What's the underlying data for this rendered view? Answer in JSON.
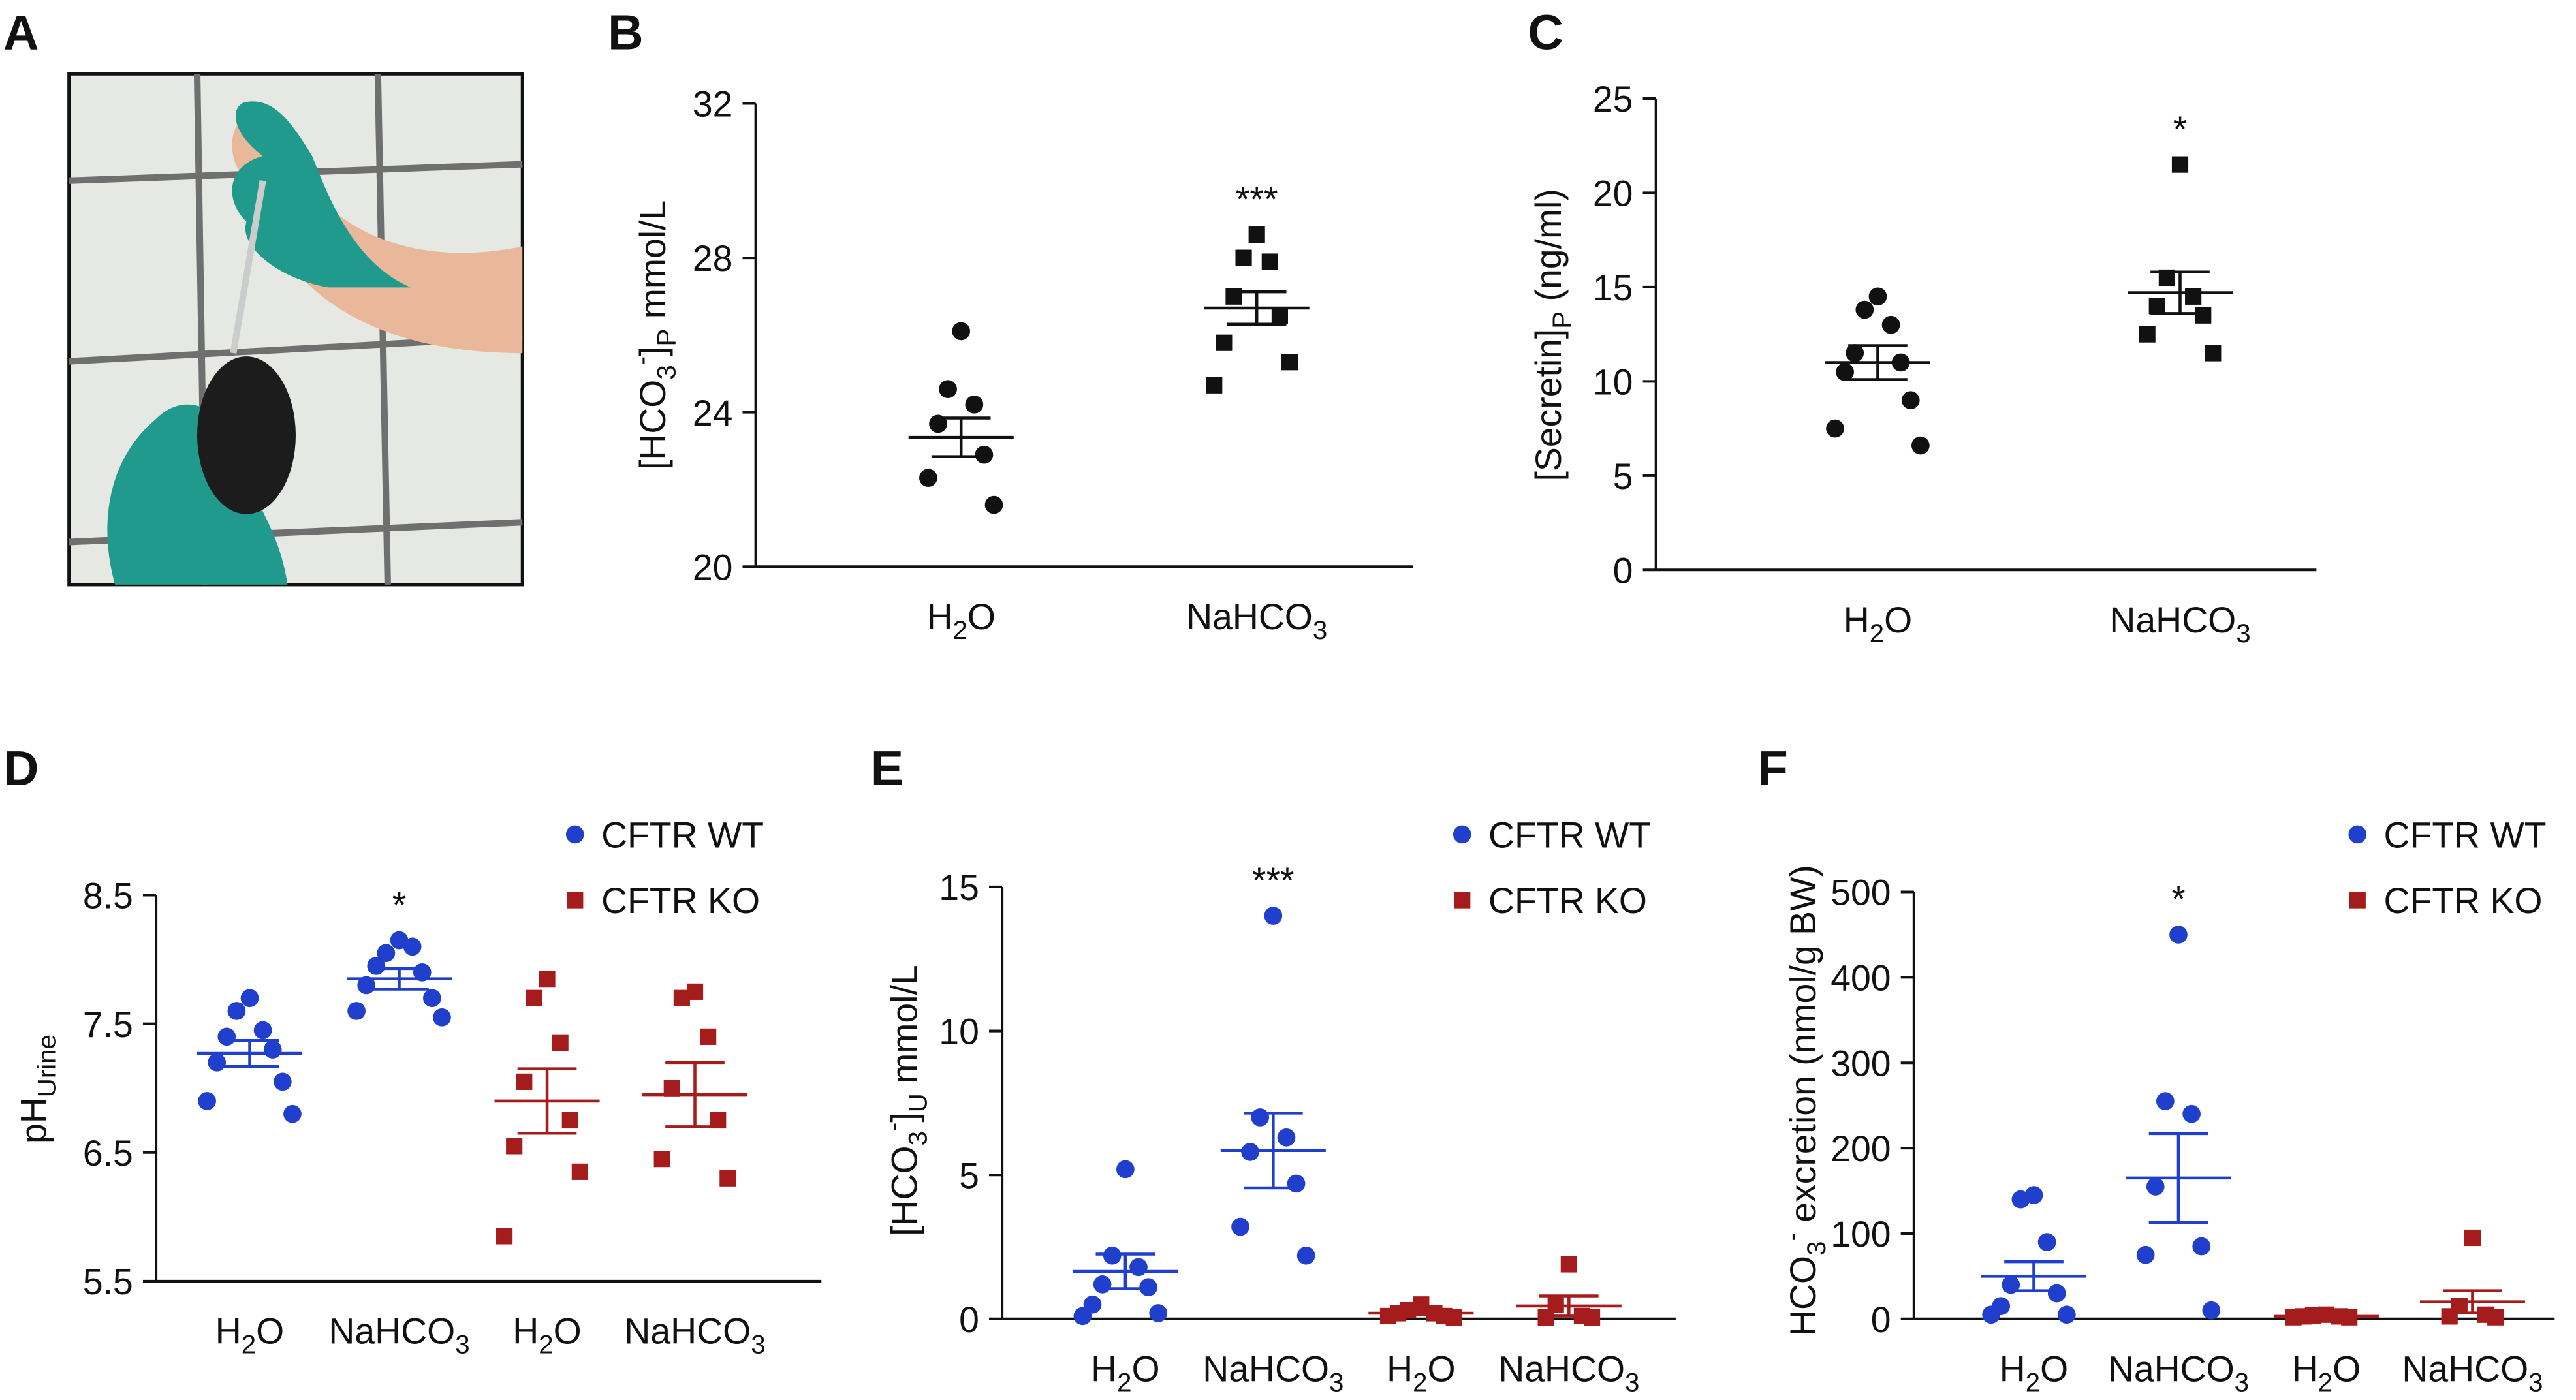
{
  "chart_data": [
    {
      "type": "image",
      "panel": "A"
    },
    {
      "type": "dotplot",
      "panel": "B",
      "ylabel": [
        {
          "text": "[HCO"
        },
        {
          "text": "3",
          "shift": "sub"
        },
        {
          "text": "-",
          "shift": "super"
        },
        {
          "text": "]"
        },
        {
          "text": "P",
          "shift": "sub"
        },
        {
          "text": " mmol/L"
        }
      ],
      "categories": [
        [
          {
            "text": "H"
          },
          {
            "text": "2",
            "shift": "sub"
          },
          {
            "text": "O"
          }
        ],
        [
          {
            "text": "NaHCO"
          },
          {
            "text": "3",
            "shift": "sub"
          }
        ]
      ],
      "ylim": [
        20,
        32
      ],
      "yticks": [
        20,
        24,
        28,
        32
      ],
      "series": [
        {
          "color": "#111111",
          "marker": [
            "circle",
            "square"
          ],
          "points": [
            [
              26.1,
              24.6,
              24.2,
              23.7,
              22.9,
              22.3,
              21.6
            ],
            [
              28.6,
              28.0,
              27.9,
              27.0,
              26.5,
              25.8,
              25.3,
              24.7
            ]
          ],
          "mean": [
            23.35,
            26.7
          ],
          "sem": [
            0.5,
            0.42
          ],
          "significance": [
            null,
            "***"
          ]
        }
      ]
    },
    {
      "type": "dotplot",
      "panel": "C",
      "ylabel": [
        {
          "text": "[Secretin]"
        },
        {
          "text": "P",
          "shift": "sub"
        },
        {
          "text": " (ng/ml)"
        }
      ],
      "categories": [
        [
          {
            "text": "H"
          },
          {
            "text": "2",
            "shift": "sub"
          },
          {
            "text": "O"
          }
        ],
        [
          {
            "text": "NaHCO"
          },
          {
            "text": "3",
            "shift": "sub"
          }
        ]
      ],
      "ylim": [
        0,
        25
      ],
      "yticks": [
        0,
        5,
        10,
        15,
        20,
        25
      ],
      "series": [
        {
          "color": "#111111",
          "marker": [
            "circle",
            "square"
          ],
          "points": [
            [
              14.5,
              13.8,
              13.0,
              11.5,
              11.0,
              10.5,
              9.0,
              7.5,
              6.6
            ],
            [
              21.5,
              15.5,
              14.5,
              14.0,
              13.5,
              12.5,
              11.5
            ]
          ],
          "mean": [
            11.0,
            14.7
          ],
          "sem": [
            0.9,
            1.1
          ],
          "significance": [
            null,
            "*"
          ]
        }
      ]
    },
    {
      "type": "dotplot",
      "panel": "D",
      "ylabel": [
        {
          "text": "pH"
        },
        {
          "text": "Urine",
          "shift": "sub"
        }
      ],
      "categories": [
        [
          {
            "text": "H"
          },
          {
            "text": "2",
            "shift": "sub"
          },
          {
            "text": "O"
          }
        ],
        [
          {
            "text": "NaHCO"
          },
          {
            "text": "3",
            "shift": "sub"
          }
        ],
        [
          {
            "text": "H"
          },
          {
            "text": "2",
            "shift": "sub"
          },
          {
            "text": "O"
          }
        ],
        [
          {
            "text": "NaHCO"
          },
          {
            "text": "3",
            "shift": "sub"
          }
        ]
      ],
      "ylim": [
        5.5,
        8.5
      ],
      "yticks": [
        5.5,
        6.5,
        7.5,
        8.5
      ],
      "series": [
        {
          "name": "CFTR WT",
          "color": "#1f3fcc",
          "marker": "circle",
          "points": [
            [
              7.7,
              7.6,
              7.45,
              7.4,
              7.3,
              7.2,
              7.05,
              6.9,
              6.8
            ],
            [
              8.15,
              8.05,
              8.1,
              7.95,
              7.9,
              7.8,
              7.7,
              7.6,
              7.55
            ],
            null,
            null
          ],
          "mean": [
            7.27,
            7.85,
            null,
            null
          ],
          "sem": [
            0.1,
            0.08,
            null,
            null
          ],
          "significance": [
            null,
            "*",
            null,
            null
          ]
        },
        {
          "name": "CFTR KO",
          "color": "#a51c1c",
          "marker": "square",
          "points": [
            null,
            null,
            [
              7.85,
              7.7,
              7.35,
              7.05,
              6.75,
              6.55,
              6.35,
              5.85
            ],
            [
              7.75,
              7.7,
              7.4,
              7.0,
              6.75,
              6.45,
              6.3
            ]
          ],
          "mean": [
            null,
            null,
            6.9,
            6.95
          ],
          "sem": [
            null,
            null,
            0.25,
            0.25
          ],
          "significance": [
            null,
            null,
            null,
            null
          ]
        }
      ]
    },
    {
      "type": "dotplot",
      "panel": "E",
      "ylabel": [
        {
          "text": "[HCO"
        },
        {
          "text": "3",
          "shift": "sub"
        },
        {
          "text": "-",
          "shift": "super"
        },
        {
          "text": "]"
        },
        {
          "text": "U",
          "shift": "sub"
        },
        {
          "text": " mmol/L"
        }
      ],
      "categories": [
        [
          {
            "text": "H"
          },
          {
            "text": "2",
            "shift": "sub"
          },
          {
            "text": "O"
          }
        ],
        [
          {
            "text": "NaHCO"
          },
          {
            "text": "3",
            "shift": "sub"
          }
        ],
        [
          {
            "text": "H"
          },
          {
            "text": "2",
            "shift": "sub"
          },
          {
            "text": "O"
          }
        ],
        [
          {
            "text": "NaHCO"
          },
          {
            "text": "3",
            "shift": "sub"
          }
        ]
      ],
      "ylim": [
        0,
        15
      ],
      "yticks": [
        0,
        5,
        10,
        15
      ],
      "series": [
        {
          "name": "CFTR WT",
          "color": "#1f3fcc",
          "marker": "circle",
          "points": [
            [
              5.2,
              2.2,
              1.8,
              1.2,
              1.1,
              0.5,
              0.2,
              0.1
            ],
            [
              14.0,
              7.0,
              6.3,
              5.8,
              4.7,
              3.2,
              2.2
            ],
            null,
            null
          ],
          "mean": [
            1.65,
            5.85,
            null,
            null
          ],
          "sem": [
            0.6,
            1.3,
            null,
            null
          ],
          "significance": [
            null,
            "***",
            null,
            null
          ]
        },
        {
          "name": "CFTR KO",
          "color": "#a51c1c",
          "marker": "square",
          "points": [
            null,
            null,
            [
              0.5,
              0.3,
              0.2,
              0.2,
              0.1,
              0.1,
              0.05
            ],
            [
              1.9,
              0.5,
              0.1,
              0.05,
              0.05
            ]
          ],
          "mean": [
            null,
            null,
            0.2,
            0.45
          ],
          "sem": [
            null,
            null,
            0.06,
            0.35
          ],
          "significance": [
            null,
            null,
            null,
            null
          ]
        }
      ]
    },
    {
      "type": "dotplot",
      "panel": "F",
      "ylabel": [
        {
          "text": "HCO"
        },
        {
          "text": "3",
          "shift": "sub"
        },
        {
          "text": "-",
          "shift": "super"
        },
        {
          "text": " excretion (nmol/g BW)"
        }
      ],
      "categories": [
        [
          {
            "text": "H"
          },
          {
            "text": "2",
            "shift": "sub"
          },
          {
            "text": "O"
          }
        ],
        [
          {
            "text": "NaHCO"
          },
          {
            "text": "3",
            "shift": "sub"
          }
        ],
        [
          {
            "text": "H"
          },
          {
            "text": "2",
            "shift": "sub"
          },
          {
            "text": "O"
          }
        ],
        [
          {
            "text": "NaHCO"
          },
          {
            "text": "3",
            "shift": "sub"
          }
        ]
      ],
      "ylim": [
        0,
        500
      ],
      "yticks": [
        0,
        100,
        200,
        300,
        400,
        500
      ],
      "series": [
        {
          "name": "CFTR WT",
          "color": "#1f3fcc",
          "marker": "circle",
          "points": [
            [
              145,
              140,
              90,
              40,
              30,
              15,
              5,
              5
            ],
            [
              450,
              255,
              240,
              155,
              85,
              75,
              10
            ],
            null,
            null
          ],
          "mean": [
            50,
            165,
            null,
            null
          ],
          "sem": [
            17,
            52,
            null,
            null
          ],
          "significance": [
            null,
            "*",
            null,
            null
          ]
        },
        {
          "name": "CFTR KO",
          "color": "#a51c1c",
          "marker": "square",
          "points": [
            null,
            null,
            [
              5,
              4,
              3,
              3,
              2,
              2
            ],
            [
              95,
              15,
              5,
              3,
              2
            ]
          ],
          "mean": [
            null,
            null,
            3,
            20
          ],
          "sem": [
            null,
            null,
            1,
            13
          ],
          "significance": [
            null,
            null,
            null,
            null
          ]
        }
      ]
    }
  ]
}
